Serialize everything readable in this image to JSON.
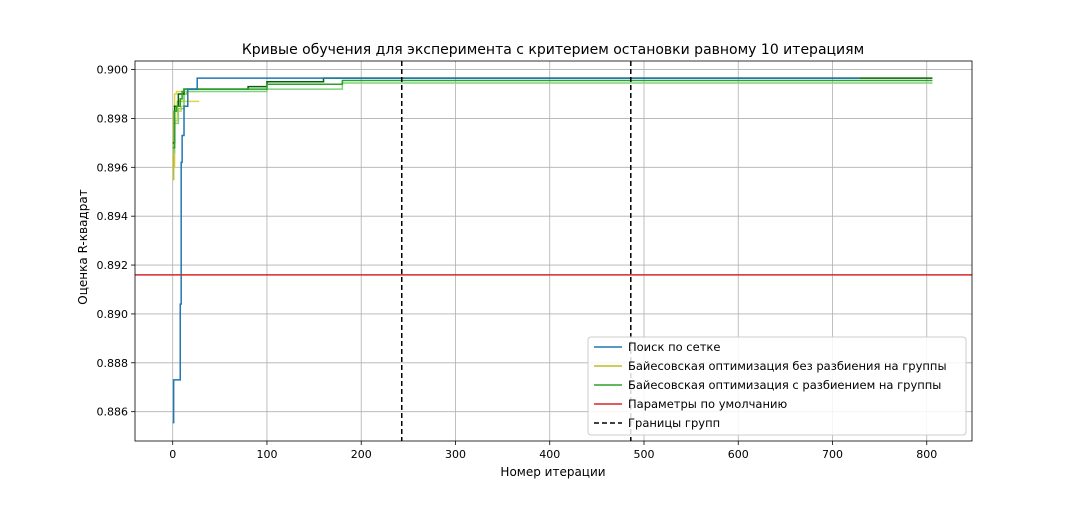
{
  "chart_data": {
    "type": "line",
    "title": "Кривые обучения для эксперимента с критерием остановки равному 10 итерациям",
    "xlabel": "Номер итерации",
    "ylabel": "Оценка R-квадрат",
    "xlim": [
      -40,
      848
    ],
    "ylim": [
      0.8848,
      0.90035
    ],
    "xticks": [
      0,
      100,
      200,
      300,
      400,
      500,
      600,
      700,
      800
    ],
    "yticks": [
      0.886,
      0.888,
      0.89,
      0.892,
      0.894,
      0.896,
      0.898,
      0.9
    ],
    "ytick_labels": [
      "0.886",
      "0.888",
      "0.890",
      "0.892",
      "0.894",
      "0.896",
      "0.898",
      "0.900"
    ],
    "grid": true,
    "legend_position": "lower right",
    "series": [
      {
        "name": "Поиск по сетке",
        "color": "#1f77b4",
        "style": "solid",
        "x": [
          0,
          1,
          7,
          8,
          9,
          10,
          11,
          12,
          14,
          16,
          25,
          26,
          729
        ],
        "y": [
          0.88555,
          0.8873,
          0.8873,
          0.8904,
          0.8962,
          0.8973,
          0.8973,
          0.8985,
          0.8985,
          0.8992,
          0.8992,
          0.89965,
          0.89965
        ]
      },
      {
        "name": "Байесовская оптимизация без разбиения на группы",
        "color": "#bcbd22",
        "style": "solid",
        "x": [
          0,
          1,
          3,
          5,
          10,
          12,
          15,
          28
        ],
        "y": [
          0.8955,
          0.8983,
          0.8983,
          0.8987,
          0.8987,
          0.899,
          0.8991,
          0.8991
        ]
      },
      {
        "name": "Байесовская оптимизация без разбиения на группы (верхняя граница)",
        "color": "#e0d44a",
        "style": "solid",
        "x": [
          0,
          2,
          4,
          8,
          12,
          28
        ],
        "y": [
          0.8985,
          0.899,
          0.8991,
          0.8991,
          0.8992,
          0.8992
        ]
      },
      {
        "name": "Байесовская оптимизация без разбиения на группы (нижняя граница)",
        "color": "#e0d44a",
        "style": "solid",
        "x": [
          0,
          2,
          5,
          9,
          12,
          28
        ],
        "y": [
          0.896,
          0.8979,
          0.8983,
          0.8985,
          0.8987,
          0.8987
        ]
      },
      {
        "name": "Байесовская оптимизация с разбиением на группы",
        "color": "#2ca02c",
        "style": "solid",
        "x": [
          0,
          2,
          4,
          8,
          10,
          12,
          80,
          100,
          180,
          806
        ],
        "y": [
          0.8968,
          0.8983,
          0.8985,
          0.8988,
          0.8991,
          0.8992,
          0.8992,
          0.8994,
          0.89955,
          0.89955
        ]
      },
      {
        "name": "Байесовская оптимизация с разбиением на группы (верхняя граница)",
        "color": "#006400",
        "style": "solid",
        "x": [
          0,
          2,
          6,
          12,
          80,
          100,
          160,
          806
        ],
        "y": [
          0.897,
          0.8985,
          0.899,
          0.8992,
          0.8993,
          0.8995,
          0.89965,
          0.89965
        ]
      },
      {
        "name": "Байесовская оптимизация с разбиением на группы (нижняя граница)",
        "color": "#7fd27f",
        "style": "solid",
        "x": [
          0,
          2,
          6,
          12,
          80,
          100,
          180,
          806
        ],
        "y": [
          0.8966,
          0.8978,
          0.8984,
          0.8991,
          0.8991,
          0.8992,
          0.89945,
          0.89945
        ]
      },
      {
        "name": "Параметры по умолчанию",
        "color": "#d62728",
        "style": "solid",
        "x": [
          -40,
          848
        ],
        "y": [
          0.8916,
          0.8916
        ]
      }
    ],
    "vlines": [
      {
        "name": "Границы групп",
        "color": "#000000",
        "style": "dashed",
        "x": [
          243,
          486
        ]
      }
    ],
    "legend": [
      {
        "label": "Поиск по сетке",
        "color": "#1f77b4",
        "style": "solid"
      },
      {
        "label": "Байесовская оптимизация без разбиения на группы",
        "color": "#bcbd22",
        "style": "solid"
      },
      {
        "label": "Байесовская оптимизация с разбиением на группы",
        "color": "#2ca02c",
        "style": "solid"
      },
      {
        "label": "Параметры по умолчанию",
        "color": "#d62728",
        "style": "solid"
      },
      {
        "label": "Границы групп",
        "color": "#000000",
        "style": "dashed"
      }
    ]
  }
}
